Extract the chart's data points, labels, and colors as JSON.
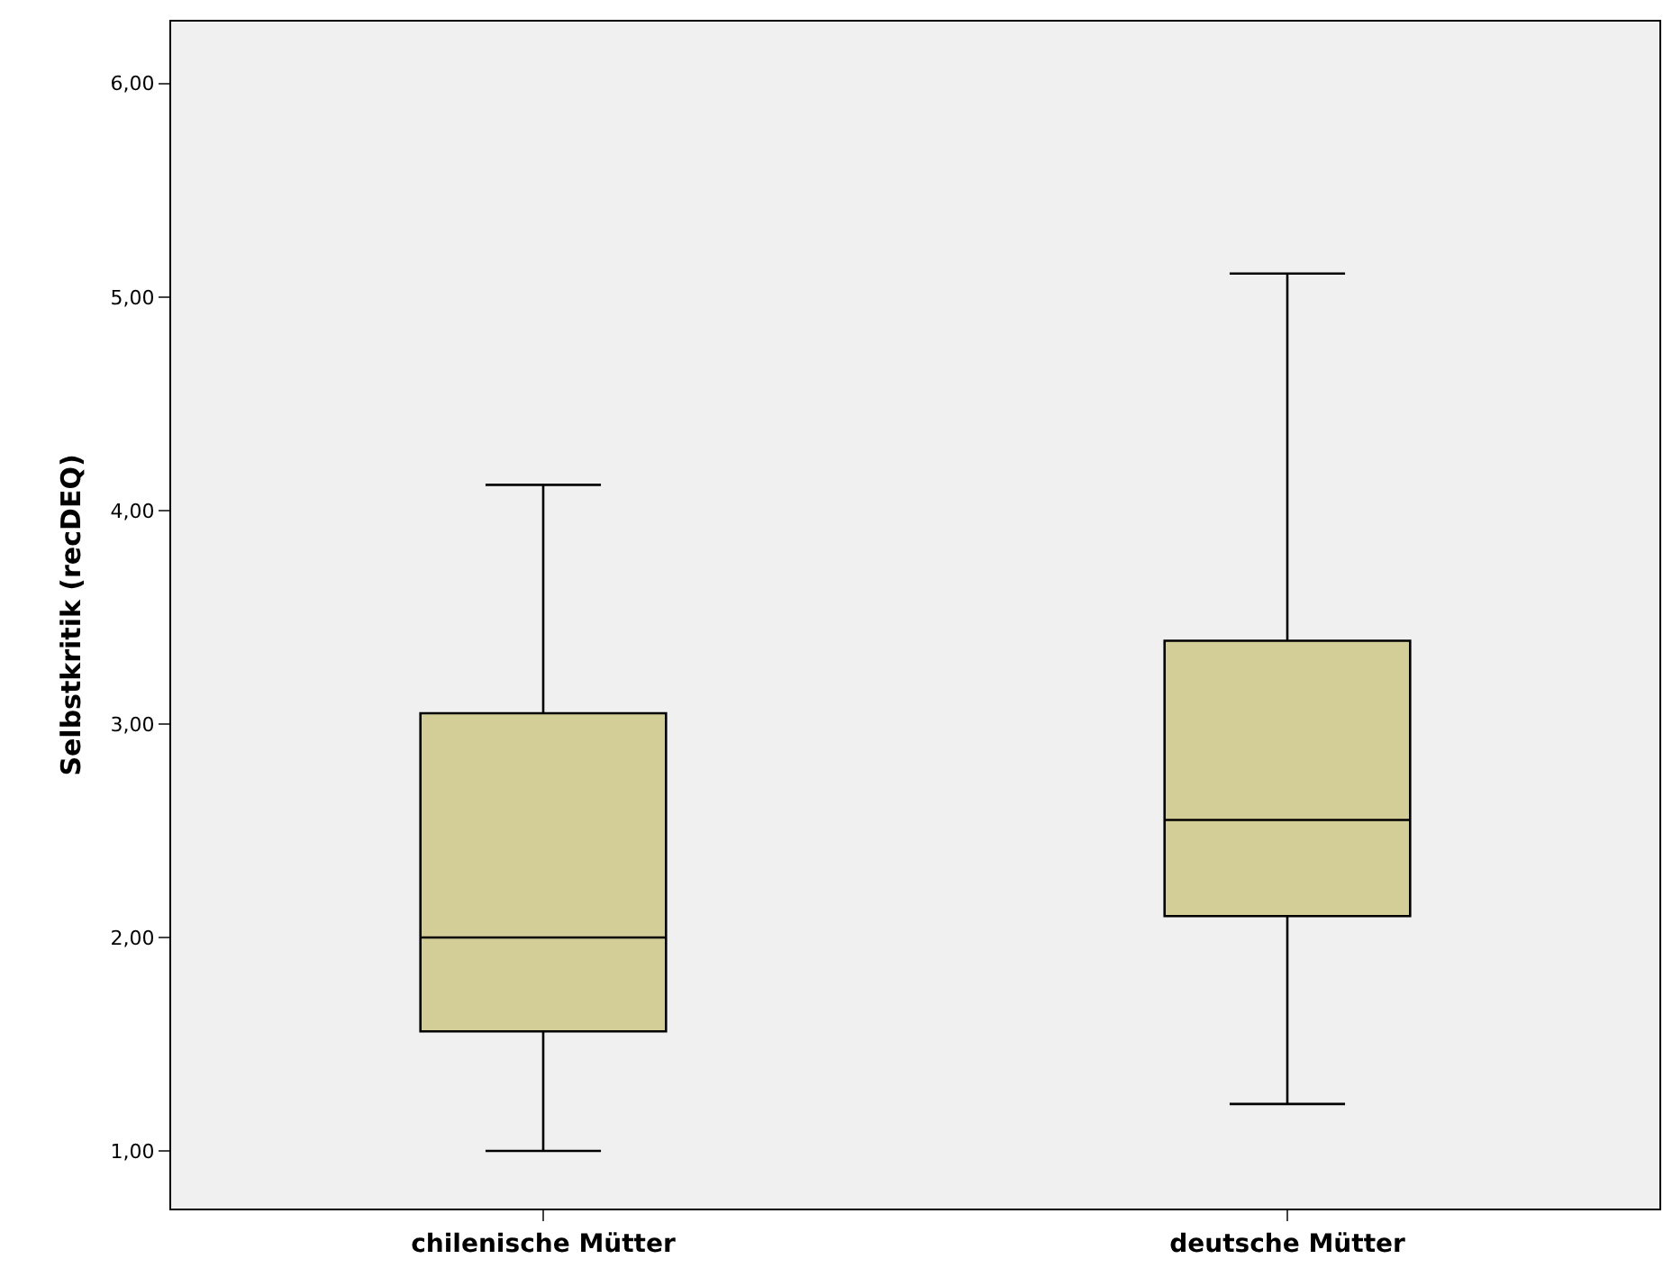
{
  "chart_data": {
    "type": "box",
    "ylabel": "Selbstkritik (recDEQ)",
    "categories": [
      "chilenische Mütter",
      "deutsche Mütter"
    ],
    "color": "#d3ce97",
    "boxes": [
      {
        "low": 1.0,
        "q1": 1.56,
        "median": 2.0,
        "q3": 3.05,
        "high": 4.12
      },
      {
        "low": 1.22,
        "q1": 2.1,
        "median": 2.55,
        "q3": 3.39,
        "high": 5.11
      }
    ],
    "ylim": [
      0.73,
      6.29
    ],
    "yticks": [
      {
        "value": 1,
        "label": "1,00"
      },
      {
        "value": 2,
        "label": "2,00"
      },
      {
        "value": 3,
        "label": "3,00"
      },
      {
        "value": 4,
        "label": "4,00"
      },
      {
        "value": 5,
        "label": "5,00"
      },
      {
        "value": 6,
        "label": "6,00"
      }
    ],
    "grid": false,
    "legend": false
  }
}
